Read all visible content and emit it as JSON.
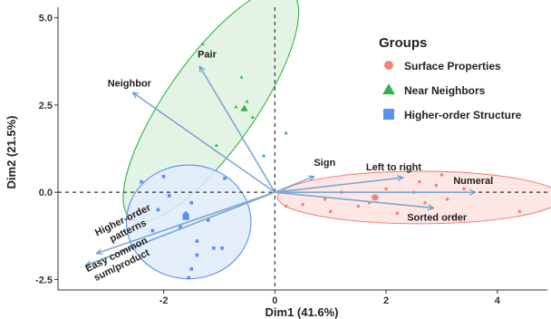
{
  "chart_data": {
    "type": "scatter",
    "subtype": "pca-biplot",
    "xlabel": "Dim1 (41.6%)",
    "ylabel": "Dim2 (21.5%)",
    "xlim": [
      -3.9,
      4.9
    ],
    "ylim": [
      -2.8,
      5.3
    ],
    "x_ticks": [
      -2,
      0,
      2,
      4
    ],
    "x_tick_labels": [
      "-2",
      "0",
      "2",
      "4"
    ],
    "y_ticks": [
      -2.5,
      0,
      2.5,
      5
    ],
    "y_tick_labels": [
      "-2.5",
      "0.0",
      "2.5",
      "5.0"
    ],
    "grid": false,
    "reference_lines": {
      "x": 0,
      "y": 0,
      "style": "dashed"
    },
    "legend": {
      "title": "Groups",
      "placement": "top-right",
      "entries": [
        {
          "label": "Surface Properties",
          "color": "#f4827a",
          "marker": "circle"
        },
        {
          "label": "Near Neighbors",
          "color": "#34b24a",
          "marker": "triangle"
        },
        {
          "label": "Higher-order Structure",
          "color": "#5b8ff0",
          "marker": "square"
        }
      ]
    },
    "series": [
      {
        "name": "Surface Properties",
        "color": "#f4827a",
        "fill": "#fde3e1",
        "marker": "circle",
        "centroid": [
          1.8,
          -0.15
        ],
        "ellipse": {
          "center": [
            2.6,
            -0.15
          ],
          "rx": 2.55,
          "ry": 0.75,
          "angle": 0
        },
        "points": [
          [
            0.2,
            -0.4
          ],
          [
            0.5,
            -0.35
          ],
          [
            0.9,
            -0.2
          ],
          [
            1.2,
            0.0
          ],
          [
            1.5,
            -0.4
          ],
          [
            1.7,
            -0.3
          ],
          [
            2.0,
            0.1
          ],
          [
            2.2,
            -0.6
          ],
          [
            2.5,
            0.0
          ],
          [
            2.7,
            -0.3
          ],
          [
            2.9,
            0.2
          ],
          [
            3.1,
            -0.2
          ],
          [
            3.2,
            -0.7
          ],
          [
            3.4,
            0.1
          ],
          [
            4.4,
            -0.55
          ],
          [
            3.0,
            0.5
          ],
          [
            1.0,
            -0.55
          ],
          [
            2.6,
            0.3
          ]
        ]
      },
      {
        "name": "Near Neighbors",
        "color": "#34b24a",
        "fill": "#dff2df",
        "marker": "triangle",
        "centroid": [
          -0.55,
          2.4
        ],
        "ellipse": {
          "center": [
            -1.15,
            2.5
          ],
          "rx": 2.5,
          "ry": 1.28,
          "angle": -55
        },
        "points": [
          [
            -1.3,
            4.25
          ],
          [
            -0.7,
            2.45
          ],
          [
            -0.5,
            2.6
          ],
          [
            -0.4,
            2.15
          ],
          [
            -1.05,
            1.35
          ],
          [
            0.2,
            1.7
          ],
          [
            -0.2,
            1.05
          ],
          [
            -0.6,
            3.3
          ]
        ]
      },
      {
        "name": "Higher-order Structure",
        "color": "#5b8ff0",
        "fill": "#e1ebfa",
        "marker": "square",
        "centroid": [
          -1.6,
          -0.7
        ],
        "ellipse": {
          "center": [
            -1.55,
            -0.85
          ],
          "rx": 1.12,
          "ry": 1.63,
          "angle": 0
        },
        "points": [
          [
            -2.4,
            0.3
          ],
          [
            -2.1,
            -0.5
          ],
          [
            -1.9,
            -0.1
          ],
          [
            -1.5,
            -0.3
          ],
          [
            -1.4,
            -1.4
          ],
          [
            -1.4,
            -1.8
          ],
          [
            -1.5,
            -2.2
          ],
          [
            -1.2,
            -0.8
          ],
          [
            -1.1,
            -1.6
          ],
          [
            -0.9,
            0.4
          ],
          [
            -2.2,
            -1.1
          ],
          [
            -1.6,
            -0.6
          ],
          [
            -1.7,
            -1.0
          ],
          [
            -1.55,
            -2.45
          ],
          [
            -0.95,
            -1.6
          ],
          [
            -2.0,
            0.45
          ]
        ]
      }
    ],
    "loadings": [
      {
        "label": "Neighbor",
        "x": -2.55,
        "y": 2.85
      },
      {
        "label": "Pair",
        "x": -1.35,
        "y": 3.6
      },
      {
        "label": "Sign",
        "x": 0.7,
        "y": 0.45
      },
      {
        "label": "Left to right",
        "x": 2.3,
        "y": 0.42
      },
      {
        "label": "Numeral",
        "x": 3.6,
        "y": 0.0
      },
      {
        "label": "Sorted order",
        "x": 2.85,
        "y": -0.45
      },
      {
        "label": "Higher-order patterns",
        "x": -3.2,
        "y": -1.75
      },
      {
        "label": "Easy common sum/product",
        "x": -3.4,
        "y": -2.1
      }
    ]
  }
}
